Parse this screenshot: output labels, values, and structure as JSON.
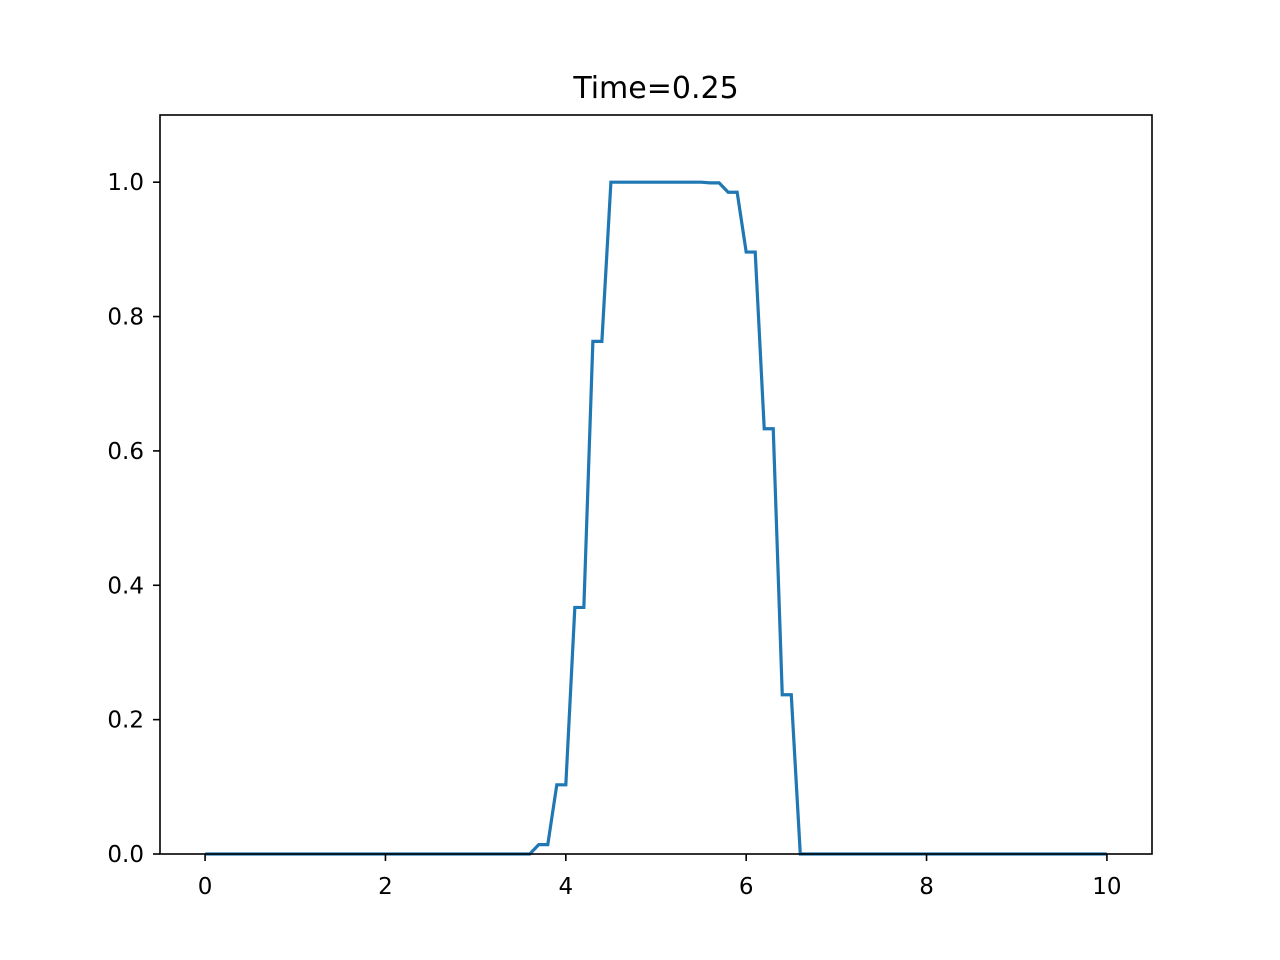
{
  "chart_data": {
    "type": "line",
    "title": "Time=0.25",
    "xlabel": "",
    "ylabel": "",
    "xlim": [
      -0.5,
      10.5
    ],
    "ylim": [
      0.0,
      1.1
    ],
    "xticks": [
      0,
      2,
      4,
      6,
      8,
      10
    ],
    "xtick_labels": [
      "0",
      "2",
      "4",
      "6",
      "8",
      "10"
    ],
    "yticks": [
      0.0,
      0.2,
      0.4,
      0.6,
      0.8,
      1.0
    ],
    "ytick_labels": [
      "0.0",
      "0.2",
      "0.4",
      "0.6",
      "0.8",
      "1.0"
    ],
    "grid": false,
    "series": [
      {
        "color": "#1f77b4",
        "x": [
          0,
          3.5,
          3.6,
          3.7,
          3.8,
          3.9,
          4.0,
          4.1,
          4.2,
          4.3,
          4.4,
          4.5,
          4.6,
          4.7,
          4.8,
          4.9,
          5.0,
          5.1,
          5.2,
          5.3,
          5.4,
          5.5,
          5.6,
          5.7,
          5.8,
          5.9,
          6.0,
          6.1,
          6.2,
          6.3,
          6.4,
          6.5,
          6.6,
          10
        ],
        "y": [
          0.0,
          0.0,
          0.0,
          0.014,
          0.014,
          0.103,
          0.103,
          0.367,
          0.367,
          0.763,
          0.763,
          1.0,
          1.0,
          1.0,
          1.0,
          1.0,
          1.0,
          1.0,
          1.0,
          1.0,
          1.0,
          1.0,
          0.999,
          0.999,
          0.985,
          0.985,
          0.896,
          0.896,
          0.633,
          0.633,
          0.237,
          0.237,
          0.0,
          0.0
        ]
      }
    ]
  }
}
